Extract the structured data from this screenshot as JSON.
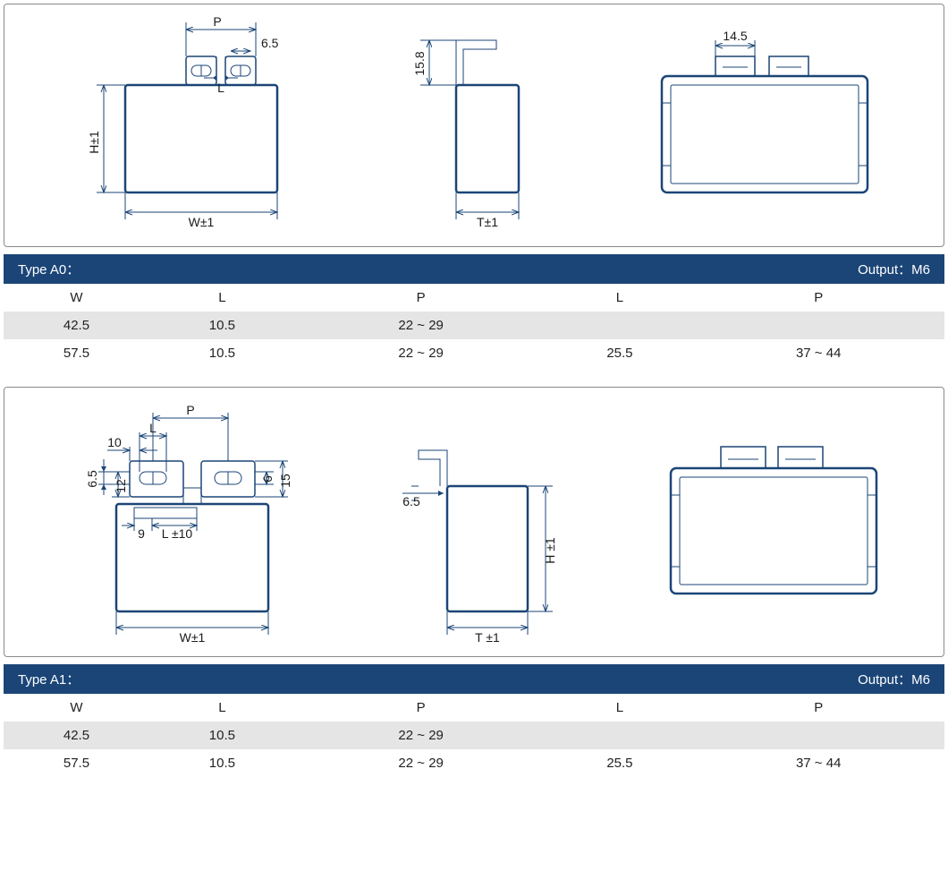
{
  "colors": {
    "bar_bg": "#1b4577",
    "shaded_row": "#e5e5e5",
    "panel_border": "#8a8a8a",
    "stroke": "#1b4577",
    "text": "#1b1b1b"
  },
  "diag_a0": {
    "front": {
      "P": "P",
      "val_6_5": "6.5",
      "L": "L",
      "H": "H±1",
      "W": "W±1"
    },
    "side": {
      "val_15_8": "15.8",
      "T": "T±1"
    },
    "top": {
      "val_14_5": "14.5"
    }
  },
  "table_a0": {
    "type_label": "Type A0：",
    "output_label": "Output：M6",
    "columns": [
      "W",
      "L",
      "P",
      "L",
      "P"
    ],
    "rows": [
      [
        "42.5",
        "10.5",
        "22 ~ 29",
        "",
        ""
      ],
      [
        "57.5",
        "10.5",
        "22 ~ 29",
        "25.5",
        "37 ~ 44"
      ]
    ]
  },
  "diag_a1": {
    "front": {
      "P": "P",
      "L": "L",
      "val_10": "10",
      "val_6_5": "6.5",
      "val_12": "12",
      "val_9": "9",
      "L10": "L ±10",
      "val_6": "6",
      "val_15": "15",
      "W": "W±1"
    },
    "side": {
      "val_6_5": "6.5",
      "H": "H ±1",
      "T": "T ±1"
    },
    "top": {}
  },
  "table_a1": {
    "type_label": "Type A1：",
    "output_label": "Output：M6",
    "columns": [
      "W",
      "L",
      "P",
      "L",
      "P"
    ],
    "rows": [
      [
        "42.5",
        "10.5",
        "22 ~ 29",
        "",
        ""
      ],
      [
        "57.5",
        "10.5",
        "22 ~ 29",
        "25.5",
        "37 ~ 44"
      ]
    ]
  }
}
